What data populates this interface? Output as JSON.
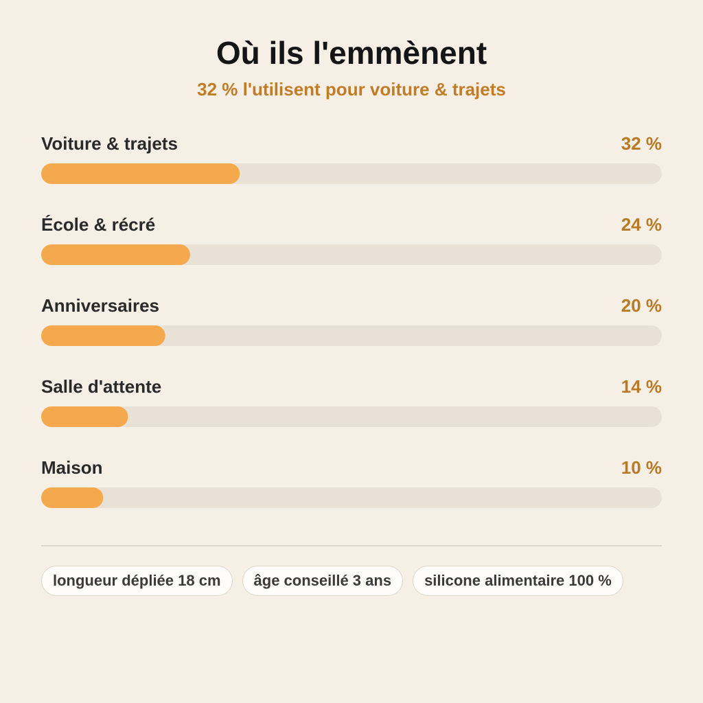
{
  "chart_data": {
    "type": "bar",
    "orientation": "horizontal",
    "title": "Où ils l'emmènent",
    "subtitle": "32 % l'utilisent pour voiture & trajets",
    "categories": [
      "Voiture & trajets",
      "École & récré",
      "Anniversaires",
      "Salle d'attente",
      "Maison"
    ],
    "values": [
      32,
      24,
      20,
      14,
      10
    ],
    "value_labels": [
      "32 %",
      "24 %",
      "20 %",
      "14 %",
      "10 %"
    ],
    "color": "#f4a94e",
    "xlim": [
      0,
      100
    ],
    "annotations": [
      "longueur dépliée 18 cm",
      "âge conseillé 3 ans",
      "silicone alimentaire 100 %"
    ]
  }
}
